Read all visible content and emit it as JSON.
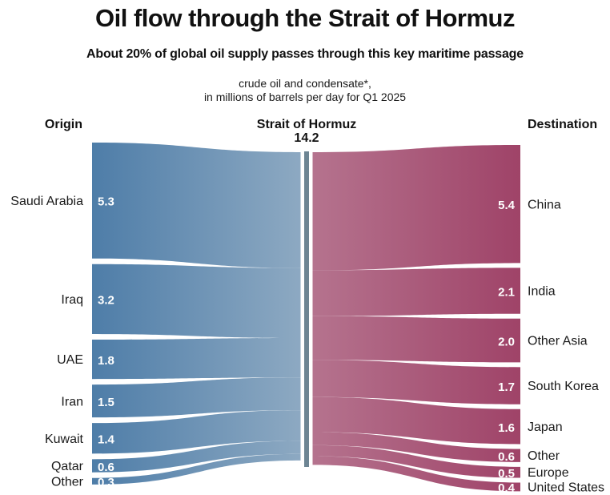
{
  "header": {
    "title": "Oil flow through the Strait of Hormuz",
    "subtitle": "About 20% of global oil supply passes through this key maritime passage",
    "note_line1": "crude oil and condensate*,",
    "note_line2": "in millions of barrels per day for Q1 2025"
  },
  "chart_data": {
    "type": "sankey",
    "title": "Oil flow through the Strait of Hormuz",
    "unit": "millions of barrels per day",
    "period": "Q1 2025",
    "column_labels": {
      "left": "Origin",
      "center": "Strait of Hormuz",
      "right": "Destination"
    },
    "strait_total": "14.2",
    "origins": [
      {
        "label": "Saudi Arabia",
        "value": "5.3"
      },
      {
        "label": "Iraq",
        "value": "3.2"
      },
      {
        "label": "UAE",
        "value": "1.8"
      },
      {
        "label": "Iran",
        "value": "1.5"
      },
      {
        "label": "Kuwait",
        "value": "1.4"
      },
      {
        "label": "Qatar",
        "value": "0.6"
      },
      {
        "label": "Other",
        "value": "0.3"
      }
    ],
    "destinations": [
      {
        "label": "China",
        "value": "5.4"
      },
      {
        "label": "India",
        "value": "2.1"
      },
      {
        "label": "Other Asia",
        "value": "2.0"
      },
      {
        "label": "South Korea",
        "value": "1.7"
      },
      {
        "label": "Japan",
        "value": "1.6"
      },
      {
        "label": "Other",
        "value": "0.6"
      },
      {
        "label": "Europe",
        "value": "0.5"
      },
      {
        "label": "United States",
        "value": "0.4"
      }
    ],
    "colors": {
      "origin_dark": "#4e7da8",
      "origin_light": "#8da9c2",
      "destination_light": "#b5738e",
      "destination_dark": "#9f4368",
      "strait_bar": "#6d8593",
      "label_text": "#1a1a1a",
      "value_text": "#ffffff",
      "background": "#ffffff"
    }
  }
}
